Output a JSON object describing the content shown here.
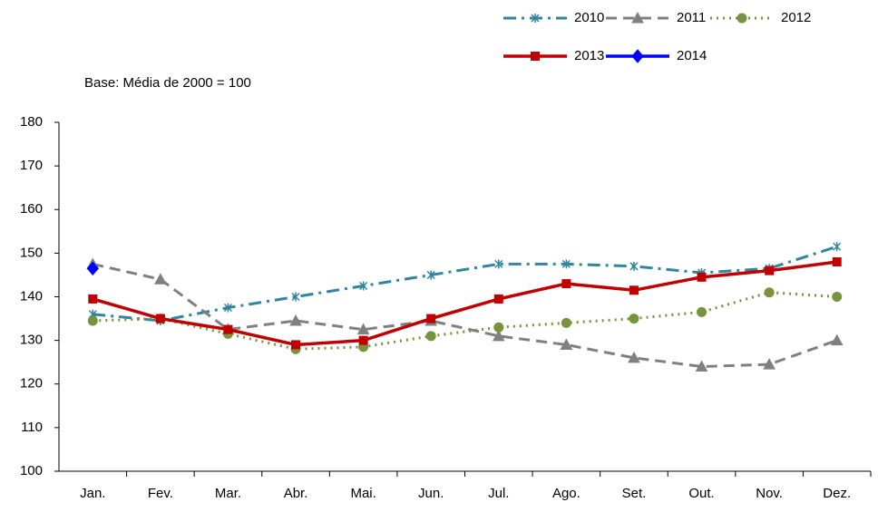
{
  "chart_data": {
    "type": "line",
    "annotation": "Base: Média de 2000 = 100",
    "categories": [
      "Jan.",
      "Fev.",
      "Mar.",
      "Abr.",
      "Mai.",
      "Jun.",
      "Jul.",
      "Ago.",
      "Set.",
      "Out.",
      "Nov.",
      "Dez."
    ],
    "series": [
      {
        "name": "2010",
        "color": "#31859c",
        "dash": "dashdot",
        "marker": "star",
        "values": [
          136,
          134.5,
          137.5,
          140,
          142.5,
          145,
          147.5,
          147.5,
          147,
          145.5,
          146.5,
          151.5
        ]
      },
      {
        "name": "2011",
        "color": "#808080",
        "dash": "dash",
        "marker": "triangle",
        "values": [
          147.5,
          144,
          132.5,
          134.5,
          132.5,
          134.5,
          131,
          129,
          126,
          124,
          124.5,
          130
        ]
      },
      {
        "name": "2012",
        "color": "#77933c",
        "dash": "dot",
        "marker": "circle",
        "values": [
          134.5,
          135,
          131.5,
          128,
          128.5,
          131,
          133,
          134,
          135,
          136.5,
          141,
          140
        ]
      },
      {
        "name": "2013",
        "color": "#c00000",
        "dash": "solid",
        "marker": "square",
        "values": [
          139.5,
          135,
          132.5,
          129,
          130,
          135,
          139.5,
          143,
          141.5,
          144.5,
          146,
          148
        ]
      },
      {
        "name": "2014",
        "color": "#0000ff",
        "dash": "solid",
        "marker": "diamond",
        "values": [
          146.5,
          null,
          null,
          null,
          null,
          null,
          null,
          null,
          null,
          null,
          null,
          null
        ]
      }
    ],
    "ylim": [
      100,
      180
    ],
    "yticks": [
      100,
      110,
      120,
      130,
      140,
      150,
      160,
      170,
      180
    ],
    "grid": false,
    "legend": "top-right"
  }
}
